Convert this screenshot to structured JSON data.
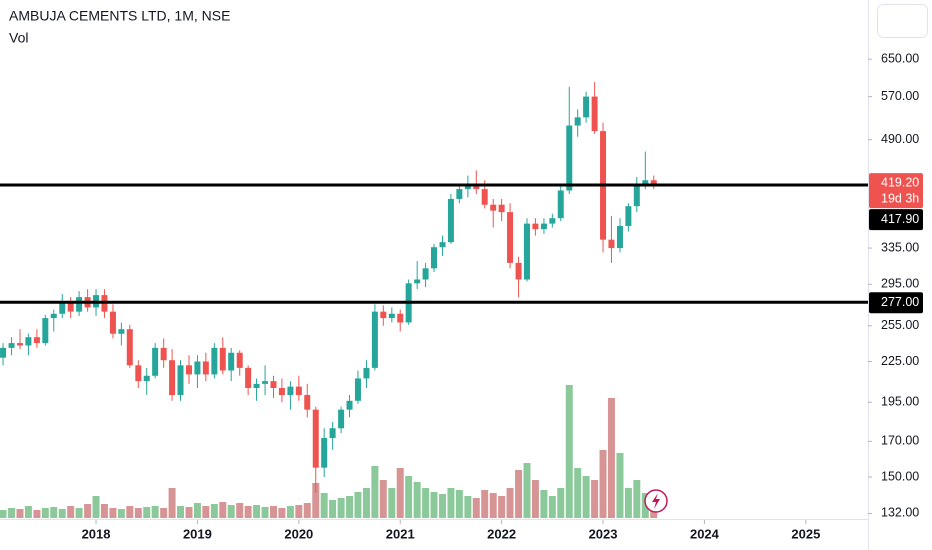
{
  "chart_data": {
    "type": "candlestick",
    "title": "AMBUJA CEMENTS LTD, 1M, NSE",
    "volume_label": "Vol",
    "log_y": true,
    "up_color": "#26a69a",
    "down_color": "#ef5350",
    "volume_up_color": "#8cc99a",
    "volume_down_color": "#d69495",
    "x": [
      2017.083,
      2017.167,
      2017.25,
      2017.333,
      2017.417,
      2017.5,
      2017.583,
      2017.667,
      2017.75,
      2017.833,
      2017.917,
      2018,
      2018.083,
      2018.167,
      2018.25,
      2018.333,
      2018.417,
      2018.5,
      2018.583,
      2018.667,
      2018.75,
      2018.833,
      2018.917,
      2019,
      2019.083,
      2019.167,
      2019.25,
      2019.333,
      2019.417,
      2019.5,
      2019.583,
      2019.667,
      2019.75,
      2019.833,
      2019.917,
      2020,
      2020.083,
      2020.167,
      2020.25,
      2020.333,
      2020.417,
      2020.5,
      2020.583,
      2020.667,
      2020.75,
      2020.833,
      2020.917,
      2021,
      2021.083,
      2021.167,
      2021.25,
      2021.333,
      2021.417,
      2021.5,
      2021.583,
      2021.667,
      2021.75,
      2021.833,
      2021.917,
      2022,
      2022.083,
      2022.167,
      2022.25,
      2022.333,
      2022.417,
      2022.5,
      2022.583,
      2022.667,
      2022.75,
      2022.833,
      2022.917,
      2023,
      2023.083,
      2023.167,
      2023.25,
      2023.333,
      2023.417,
      2023.5
    ],
    "open": [
      228,
      236,
      240,
      238,
      245,
      240,
      262,
      266,
      278,
      268,
      282,
      272,
      284,
      268,
      248,
      252,
      222,
      210,
      214,
      236,
      226,
      200,
      222,
      215,
      225,
      215,
      236,
      218,
      232,
      220,
      205,
      208,
      210,
      205,
      200,
      206,
      200,
      190,
      155,
      172,
      178,
      190,
      196,
      212,
      220,
      268,
      262,
      266,
      258,
      296,
      300,
      312,
      336,
      342,
      398,
      412,
      418,
      412,
      390,
      390,
      380,
      318,
      300,
      365,
      358,
      365,
      372,
      410,
      515,
      530,
      570,
      505,
      345,
      335,
      362,
      388,
      420,
      425
    ],
    "high": [
      240,
      245,
      252,
      248,
      252,
      265,
      270,
      285,
      282,
      288,
      290,
      290,
      290,
      275,
      258,
      256,
      226,
      220,
      240,
      244,
      235,
      226,
      230,
      230,
      232,
      240,
      245,
      236,
      234,
      222,
      212,
      222,
      214,
      212,
      210,
      214,
      208,
      192,
      178,
      182,
      192,
      200,
      218,
      226,
      275,
      274,
      272,
      270,
      300,
      320,
      318,
      340,
      350,
      405,
      420,
      432,
      440,
      425,
      398,
      398,
      392,
      325,
      372,
      372,
      372,
      378,
      420,
      590,
      545,
      580,
      600,
      520,
      375,
      372,
      392,
      430,
      470,
      432
    ],
    "low": [
      222,
      230,
      235,
      230,
      236,
      238,
      250,
      262,
      262,
      264,
      268,
      264,
      262,
      244,
      238,
      220,
      205,
      200,
      212,
      220,
      196,
      196,
      208,
      205,
      210,
      212,
      215,
      210,
      214,
      200,
      196,
      200,
      198,
      195,
      190,
      196,
      185,
      142,
      150,
      165,
      175,
      185,
      194,
      205,
      218,
      255,
      258,
      250,
      256,
      290,
      292,
      308,
      326,
      340,
      392,
      400,
      405,
      385,
      360,
      368,
      312,
      282,
      298,
      350,
      352,
      360,
      368,
      405,
      495,
      520,
      500,
      330,
      318,
      330,
      355,
      380,
      412,
      412
    ],
    "close": [
      236,
      240,
      238,
      245,
      240,
      262,
      266,
      278,
      268,
      282,
      272,
      284,
      268,
      248,
      252,
      222,
      210,
      214,
      236,
      226,
      200,
      222,
      215,
      225,
      215,
      236,
      218,
      232,
      220,
      205,
      208,
      210,
      205,
      200,
      206,
      200,
      190,
      155,
      172,
      178,
      190,
      196,
      212,
      220,
      268,
      262,
      266,
      258,
      296,
      300,
      312,
      336,
      342,
      398,
      412,
      418,
      412,
      390,
      382,
      380,
      318,
      300,
      365,
      358,
      365,
      372,
      410,
      515,
      530,
      570,
      505,
      345,
      335,
      362,
      388,
      420,
      425,
      419.2
    ],
    "volume": [
      8,
      10,
      9,
      12,
      8,
      10,
      11,
      9,
      12,
      10,
      14,
      22,
      14,
      10,
      9,
      12,
      10,
      11,
      12,
      10,
      30,
      12,
      11,
      15,
      12,
      14,
      16,
      13,
      15,
      12,
      13,
      11,
      12,
      10,
      12,
      13,
      15,
      35,
      25,
      18,
      20,
      22,
      26,
      30,
      52,
      38,
      30,
      50,
      42,
      36,
      30,
      26,
      24,
      30,
      28,
      22,
      20,
      28,
      25,
      22,
      30,
      48,
      55,
      38,
      28,
      22,
      30,
      133,
      50,
      42,
      38,
      68,
      120,
      65,
      30,
      38,
      25,
      14
    ],
    "vlim": [
      0,
      140
    ],
    "xlim": [
      2017.053,
      2025.613
    ],
    "ylim": [
      129,
      800
    ],
    "xticks": [
      2018,
      2019,
      2020,
      2021,
      2022,
      2023,
      2024,
      2025
    ],
    "yticks": [
      {
        "value": 650,
        "label": "650.00"
      },
      {
        "value": 570,
        "label": "570.00"
      },
      {
        "value": 490,
        "label": "490.00"
      },
      {
        "value": 335,
        "label": "335.00"
      },
      {
        "value": 295,
        "label": "295.00"
      },
      {
        "value": 255,
        "label": "255.00"
      },
      {
        "value": 225,
        "label": "225.00"
      },
      {
        "value": 195,
        "label": "195.00"
      },
      {
        "value": 170,
        "label": "170.00"
      },
      {
        "value": 150,
        "label": "150.00"
      },
      {
        "value": 132,
        "label": "132.00"
      }
    ],
    "hlines": [
      {
        "value": 417.9,
        "label": "417.90"
      },
      {
        "value": 277,
        "label": "277.00"
      }
    ],
    "last_price_label": "419.20",
    "countdown": "19d 3h"
  }
}
